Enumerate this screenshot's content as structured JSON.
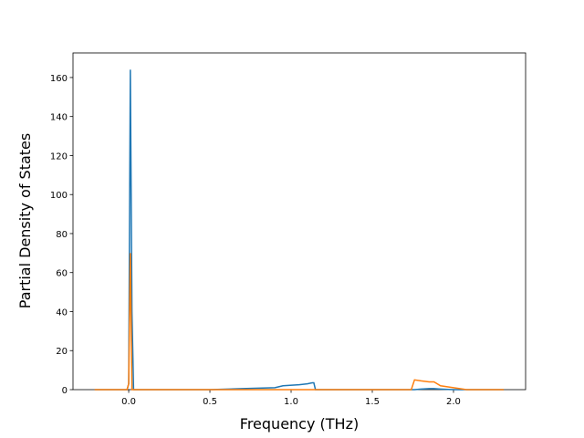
{
  "chart_data": {
    "type": "line",
    "xlabel": "Frequency (THz)",
    "ylabel": "Partial Density of States",
    "x": [
      -0.21,
      -0.01,
      0.0,
      0.01,
      0.02,
      0.03,
      0.5,
      0.7,
      0.9,
      0.95,
      1.05,
      1.1,
      1.13,
      1.14,
      1.15,
      1.74,
      1.76,
      1.8,
      1.85,
      1.88,
      1.92,
      2.0,
      2.08,
      2.31
    ],
    "series": [
      {
        "color": "#1f77b4",
        "values": [
          0,
          0,
          3,
          164,
          40,
          0,
          0,
          0.5,
          1,
          2,
          2.5,
          3,
          3.5,
          3.5,
          0,
          0,
          0,
          0.3,
          0.5,
          0.5,
          0.3,
          0,
          0,
          0
        ]
      },
      {
        "color": "#ff7f0e",
        "values": [
          0,
          0,
          3,
          70,
          0,
          0,
          0,
          0,
          0,
          0,
          0,
          0,
          0,
          0,
          0,
          0,
          5,
          4.5,
          4,
          4,
          2,
          1,
          0,
          0
        ]
      }
    ],
    "xlim": [
      -0.343,
      2.444
    ],
    "xticks": [
      {
        "value": 0,
        "label": "0.0"
      },
      {
        "value": 0.5,
        "label": "0.5"
      },
      {
        "value": 1,
        "label": "1.0"
      },
      {
        "value": 1.5,
        "label": "1.5"
      },
      {
        "value": 2,
        "label": "2.0"
      }
    ],
    "ylim": [
      0,
      172.6
    ],
    "yticks": [
      0,
      20,
      40,
      60,
      80,
      100,
      120,
      140,
      160
    ]
  }
}
